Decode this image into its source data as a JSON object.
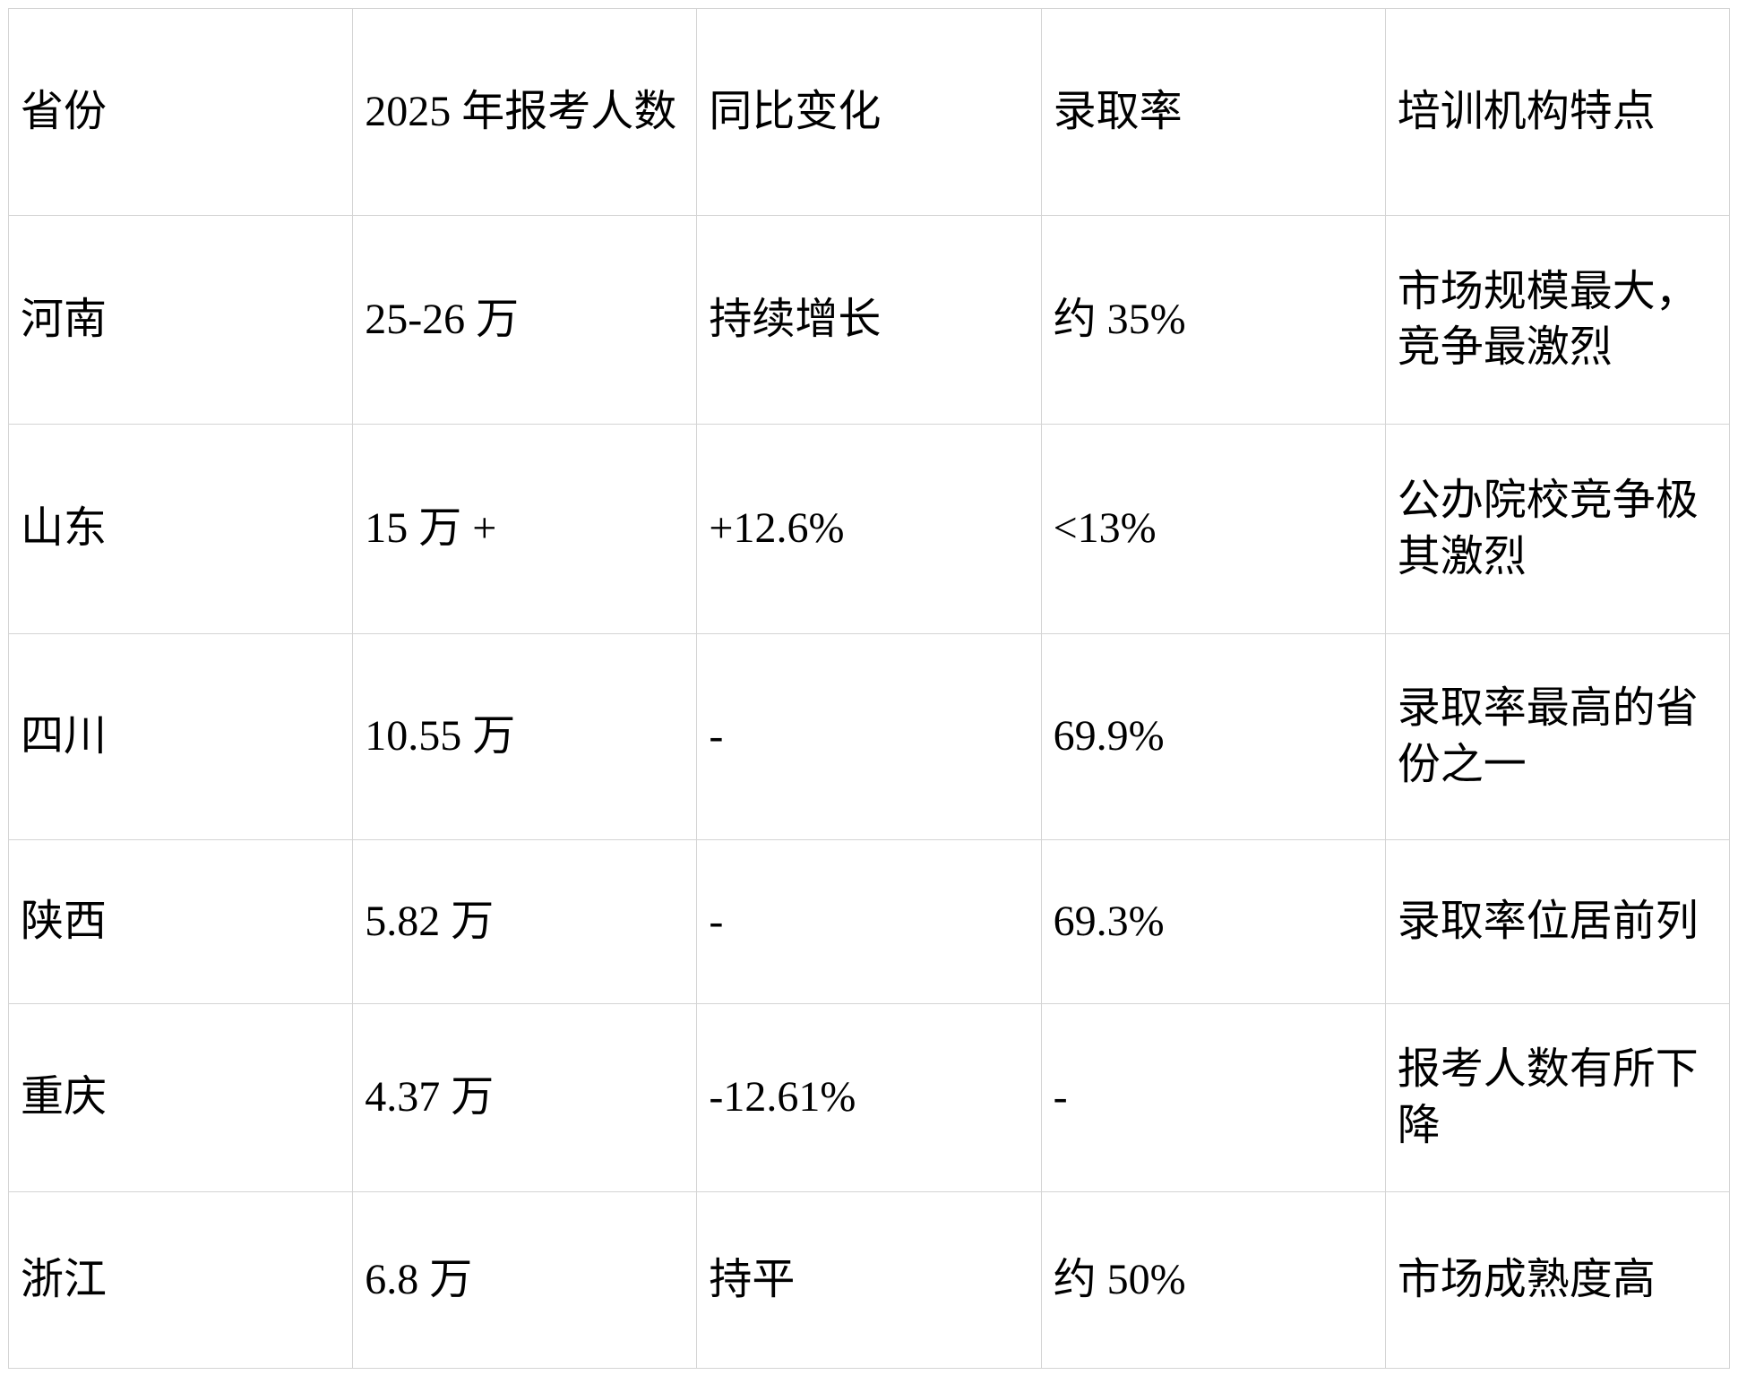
{
  "table": {
    "columns": [
      "省份",
      "2025 年报考人数",
      "同比变化",
      "录取率",
      "培训机构特点"
    ],
    "rows": [
      {
        "cells": [
          "河南",
          "25-26 万",
          "持续增长",
          "约 35%",
          "市场规模最大，竞争最激烈"
        ]
      },
      {
        "cells": [
          "山东",
          "15 万 +",
          "+12.6%",
          "<13%",
          "公办院校竞争极其激烈"
        ]
      },
      {
        "cells": [
          "四川",
          "10.55 万",
          "-",
          "69.9%",
          "录取率最高的省份之一"
        ]
      },
      {
        "cells": [
          "陕西",
          "5.82 万",
          "-",
          "69.3%",
          "录取率位居前列"
        ]
      },
      {
        "cells": [
          "重庆",
          "4.37 万",
          "-12.61%",
          "-",
          "报考人数有所下降"
        ]
      },
      {
        "cells": [
          "浙江",
          "6.8 万",
          "持平",
          "约 50%",
          "市场成熟度高"
        ]
      }
    ]
  },
  "colors": {
    "border": "#d4d4d4",
    "text": "#000000",
    "background": "#ffffff"
  }
}
